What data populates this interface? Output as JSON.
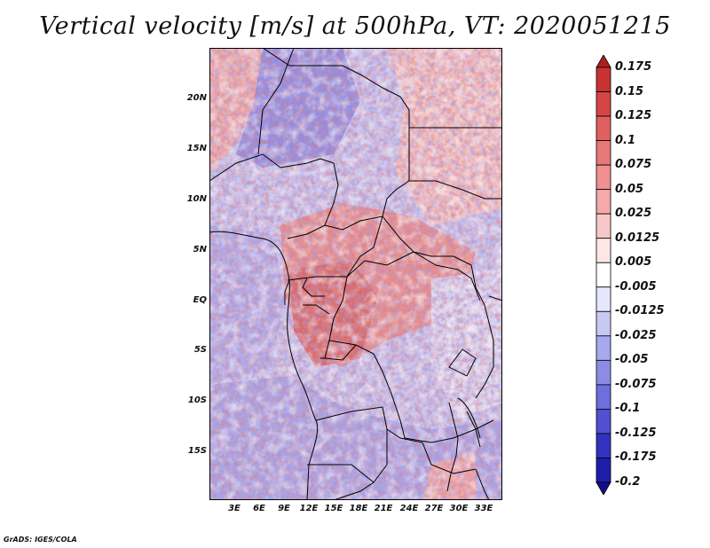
{
  "title": "Vertical velocity [m/s] at 500hPa, VT: 2020051215",
  "credit": "GrADS: IGES/COLA",
  "map": {
    "lat_labels": [
      "20N",
      "15N",
      "10N",
      "5N",
      "EQ",
      "5S",
      "10S",
      "15S"
    ],
    "lon_labels": [
      "3E",
      "6E",
      "9E",
      "12E",
      "15E",
      "18E",
      "21E",
      "24E",
      "27E",
      "30E",
      "33E"
    ],
    "colors": {
      "strong_up": "#c83c3c",
      "mild_up": "#f0a8a8",
      "neutral": "#ffffff",
      "mild_down": "#a8a8f0",
      "strong_down": "#3c3cc8",
      "borders": "#000000"
    }
  },
  "colorbar": {
    "levels": [
      "0.175",
      "0.15",
      "0.125",
      "0.1",
      "0.075",
      "0.05",
      "0.025",
      "0.0125",
      "0.005",
      "-0.005",
      "-0.0125",
      "-0.025",
      "-0.05",
      "-0.075",
      "-0.1",
      "-0.125",
      "-0.175",
      "-0.2"
    ],
    "colors": [
      "#b01e1e",
      "#c83232",
      "#d44646",
      "#e06060",
      "#e87878",
      "#f09090",
      "#f4aaaa",
      "#f8c8c8",
      "#fce6e6",
      "#ffffff",
      "#e6e6fc",
      "#c8c8f4",
      "#a8a8ee",
      "#8c8ce6",
      "#6e6edc",
      "#5050d0",
      "#3232c0",
      "#1e1eaa",
      "#10108c"
    ]
  }
}
